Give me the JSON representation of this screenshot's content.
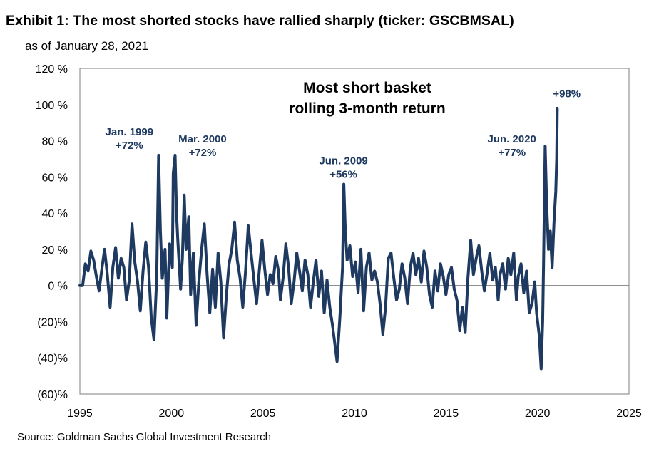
{
  "header": {
    "title": "Exhibit 1: The most shorted stocks have rallied sharply (ticker: GSCBMSAL)",
    "subtitle": "as of January 28, 2021"
  },
  "footer": {
    "source": "Source: Goldman Sachs Global Investment Research"
  },
  "colors": {
    "series": "#1f3a60",
    "zero_line": "#7f7f7f",
    "frame": "#7f7f7f"
  },
  "chart_data": {
    "type": "line",
    "title": "Most short basket rolling 3-month return",
    "title_lines": [
      "Most short basket",
      "rolling 3-month return"
    ],
    "xlim": [
      1995,
      2025
    ],
    "ylim": [
      -60,
      120
    ],
    "x_ticks": [
      1995,
      2000,
      2005,
      2010,
      2015,
      2020,
      2025
    ],
    "y_ticks": [
      {
        "value": 120,
        "label": "120 %"
      },
      {
        "value": 100,
        "label": "100 %"
      },
      {
        "value": 80,
        "label": "80 %"
      },
      {
        "value": 60,
        "label": "60 %"
      },
      {
        "value": 40,
        "label": "40 %"
      },
      {
        "value": 20,
        "label": "20 %"
      },
      {
        "value": 0,
        "label": "0 %"
      },
      {
        "value": -20,
        "label": "(20)%"
      },
      {
        "value": -40,
        "label": "(40)%"
      },
      {
        "value": -60,
        "label": "(60)%"
      }
    ],
    "grid": false,
    "legend": "none",
    "annotations": [
      {
        "lines": [
          "Jan. 1999",
          "+72%"
        ],
        "x": 1997.7,
        "y": 83
      },
      {
        "lines": [
          "Mar. 2000",
          "+72%"
        ],
        "x": 2001.7,
        "y": 79
      },
      {
        "lines": [
          "Jun. 2009",
          "+56%"
        ],
        "x": 2009.4,
        "y": 67
      },
      {
        "lines": [
          "Jun. 2020",
          "+77%"
        ],
        "x": 2018.6,
        "y": 79
      },
      {
        "lines": [
          "+98%"
        ],
        "x": 2021.6,
        "y": 104
      }
    ],
    "series": [
      {
        "values": [
          [
            1995.0,
            0
          ],
          [
            1995.15,
            0
          ],
          [
            1995.3,
            12
          ],
          [
            1995.45,
            8
          ],
          [
            1995.6,
            19
          ],
          [
            1995.75,
            14
          ],
          [
            1995.9,
            5
          ],
          [
            1996.05,
            -3
          ],
          [
            1996.2,
            9
          ],
          [
            1996.35,
            20
          ],
          [
            1996.5,
            6
          ],
          [
            1996.65,
            -12
          ],
          [
            1996.8,
            10
          ],
          [
            1996.95,
            21
          ],
          [
            1997.1,
            4
          ],
          [
            1997.25,
            15
          ],
          [
            1997.4,
            10
          ],
          [
            1997.55,
            -8
          ],
          [
            1997.7,
            3
          ],
          [
            1997.85,
            34
          ],
          [
            1998.0,
            13
          ],
          [
            1998.15,
            2
          ],
          [
            1998.3,
            -14
          ],
          [
            1998.45,
            8
          ],
          [
            1998.6,
            24
          ],
          [
            1998.75,
            10
          ],
          [
            1998.9,
            -18
          ],
          [
            1999.05,
            -30
          ],
          [
            1999.2,
            5
          ],
          [
            1999.3,
            72
          ],
          [
            1999.4,
            30
          ],
          [
            1999.5,
            4
          ],
          [
            1999.65,
            20
          ],
          [
            1999.75,
            -18
          ],
          [
            1999.9,
            23
          ],
          [
            2000.05,
            10
          ],
          [
            2000.1,
            62
          ],
          [
            2000.2,
            72
          ],
          [
            2000.28,
            40
          ],
          [
            2000.35,
            25
          ],
          [
            2000.5,
            -2
          ],
          [
            2000.6,
            15
          ],
          [
            2000.7,
            50
          ],
          [
            2000.8,
            20
          ],
          [
            2000.95,
            38
          ],
          [
            2001.05,
            -5
          ],
          [
            2001.2,
            18
          ],
          [
            2001.35,
            -22
          ],
          [
            2001.5,
            2
          ],
          [
            2001.65,
            20
          ],
          [
            2001.8,
            34
          ],
          [
            2001.95,
            6
          ],
          [
            2002.1,
            -15
          ],
          [
            2002.25,
            9
          ],
          [
            2002.4,
            -12
          ],
          [
            2002.55,
            18
          ],
          [
            2002.7,
            2
          ],
          [
            2002.85,
            -29
          ],
          [
            2003.0,
            -6
          ],
          [
            2003.15,
            12
          ],
          [
            2003.3,
            20
          ],
          [
            2003.45,
            35
          ],
          [
            2003.6,
            14
          ],
          [
            2003.75,
            4
          ],
          [
            2003.9,
            -12
          ],
          [
            2004.05,
            8
          ],
          [
            2004.2,
            33
          ],
          [
            2004.35,
            18
          ],
          [
            2004.5,
            4
          ],
          [
            2004.65,
            -10
          ],
          [
            2004.8,
            8
          ],
          [
            2004.95,
            25
          ],
          [
            2005.1,
            9
          ],
          [
            2005.25,
            -5
          ],
          [
            2005.4,
            6
          ],
          [
            2005.55,
            1
          ],
          [
            2005.7,
            16
          ],
          [
            2005.85,
            8
          ],
          [
            2005.95,
            -8
          ],
          [
            2006.1,
            4
          ],
          [
            2006.25,
            23
          ],
          [
            2006.4,
            10
          ],
          [
            2006.55,
            -10
          ],
          [
            2006.7,
            2
          ],
          [
            2006.85,
            18
          ],
          [
            2007.0,
            8
          ],
          [
            2007.15,
            -3
          ],
          [
            2007.3,
            14
          ],
          [
            2007.45,
            6
          ],
          [
            2007.6,
            -12
          ],
          [
            2007.75,
            2
          ],
          [
            2007.9,
            14
          ],
          [
            2008.05,
            -6
          ],
          [
            2008.2,
            8
          ],
          [
            2008.35,
            -15
          ],
          [
            2008.5,
            3
          ],
          [
            2008.65,
            -12
          ],
          [
            2008.8,
            -22
          ],
          [
            2008.95,
            -34
          ],
          [
            2009.05,
            -42
          ],
          [
            2009.2,
            -18
          ],
          [
            2009.35,
            10
          ],
          [
            2009.42,
            56
          ],
          [
            2009.5,
            30
          ],
          [
            2009.6,
            14
          ],
          [
            2009.75,
            22
          ],
          [
            2009.9,
            5
          ],
          [
            2010.05,
            13
          ],
          [
            2010.2,
            -4
          ],
          [
            2010.35,
            20
          ],
          [
            2010.5,
            -14
          ],
          [
            2010.65,
            10
          ],
          [
            2010.8,
            18
          ],
          [
            2010.95,
            3
          ],
          [
            2011.1,
            8
          ],
          [
            2011.25,
            2
          ],
          [
            2011.4,
            -10
          ],
          [
            2011.55,
            -27
          ],
          [
            2011.7,
            -12
          ],
          [
            2011.85,
            15
          ],
          [
            2012.0,
            18
          ],
          [
            2012.15,
            4
          ],
          [
            2012.3,
            -8
          ],
          [
            2012.45,
            -2
          ],
          [
            2012.6,
            12
          ],
          [
            2012.75,
            4
          ],
          [
            2012.9,
            -10
          ],
          [
            2013.05,
            10
          ],
          [
            2013.2,
            18
          ],
          [
            2013.35,
            6
          ],
          [
            2013.5,
            15
          ],
          [
            2013.65,
            2
          ],
          [
            2013.8,
            19
          ],
          [
            2013.95,
            10
          ],
          [
            2014.1,
            -5
          ],
          [
            2014.25,
            -12
          ],
          [
            2014.4,
            8
          ],
          [
            2014.55,
            -3
          ],
          [
            2014.7,
            12
          ],
          [
            2014.85,
            5
          ],
          [
            2015.0,
            -5
          ],
          [
            2015.15,
            6
          ],
          [
            2015.3,
            10
          ],
          [
            2015.45,
            -2
          ],
          [
            2015.6,
            -8
          ],
          [
            2015.75,
            -25
          ],
          [
            2015.9,
            -12
          ],
          [
            2016.05,
            -26
          ],
          [
            2016.2,
            4
          ],
          [
            2016.35,
            25
          ],
          [
            2016.5,
            6
          ],
          [
            2016.65,
            15
          ],
          [
            2016.8,
            22
          ],
          [
            2016.95,
            8
          ],
          [
            2017.1,
            -3
          ],
          [
            2017.25,
            7
          ],
          [
            2017.4,
            18
          ],
          [
            2017.55,
            3
          ],
          [
            2017.7,
            10
          ],
          [
            2017.85,
            -8
          ],
          [
            2017.95,
            6
          ],
          [
            2018.1,
            12
          ],
          [
            2018.25,
            -2
          ],
          [
            2018.4,
            15
          ],
          [
            2018.55,
            6
          ],
          [
            2018.7,
            18
          ],
          [
            2018.85,
            -8
          ],
          [
            2018.95,
            5
          ],
          [
            2019.1,
            12
          ],
          [
            2019.25,
            -4
          ],
          [
            2019.4,
            8
          ],
          [
            2019.55,
            -15
          ],
          [
            2019.7,
            -10
          ],
          [
            2019.85,
            2
          ],
          [
            2019.95,
            -15
          ],
          [
            2020.1,
            -28
          ],
          [
            2020.2,
            -46
          ],
          [
            2020.28,
            -20
          ],
          [
            2020.33,
            10
          ],
          [
            2020.42,
            77
          ],
          [
            2020.5,
            45
          ],
          [
            2020.6,
            20
          ],
          [
            2020.7,
            30
          ],
          [
            2020.8,
            10
          ],
          [
            2020.9,
            35
          ],
          [
            2021.0,
            52
          ],
          [
            2021.05,
            70
          ],
          [
            2021.08,
            98
          ]
        ]
      }
    ]
  }
}
